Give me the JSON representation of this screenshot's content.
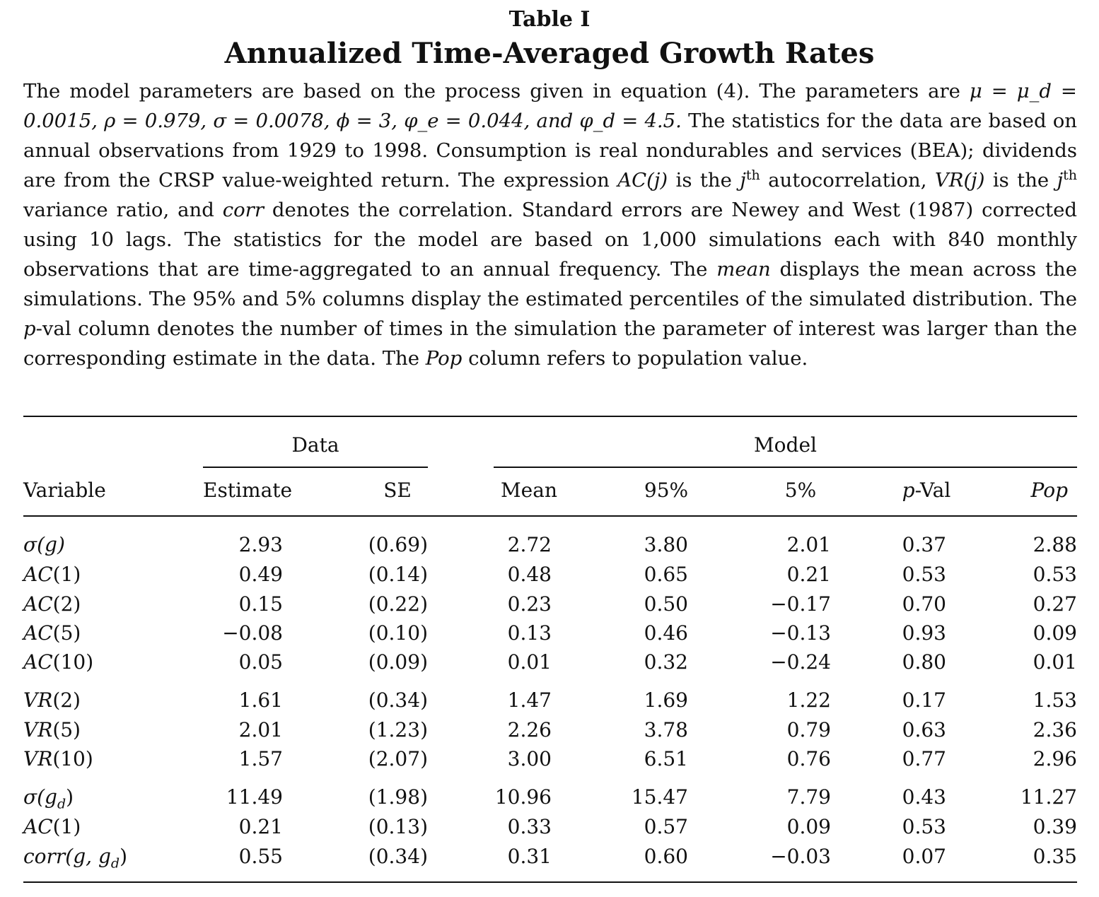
{
  "table_label": "Table I",
  "table_title": "Annualized Time-Averaged Growth Rates",
  "caption": {
    "s1": "The model parameters are based on the process given in equation (4). The parameters are",
    "params_line": "μ = μ_d = 0.0015, ρ = 0.979, σ = 0.0078, ϕ = 3, φ_e = 0.044, and φ_d = 4.5.",
    "s2": "The statistics for the data are based on annual observations from 1929 to 1998. Consumption is real nondurables and services (BEA); dividends are from the CRSP value-weighted return. The expression",
    "ac_term": "AC(j)",
    "s3": "is the",
    "j": "j",
    "th": "th",
    "s4": "autocorrelation,",
    "vr_term": "VR(j)",
    "s5": "is the",
    "s6": "variance ratio, and",
    "corr_term": "corr",
    "s7": "denotes the correlation. Standard errors are Newey and West (1987) corrected using 10 lags. The statistics for the model are based on 1,000 simulations each with 840 monthly observations that are time-aggregated to an annual frequency. The",
    "mean_term": "mean",
    "s8": "displays the mean across the simulations. The 95% and 5% columns display the estimated percentiles of the simulated distribution. The",
    "p_term": "p",
    "s9": "-val column denotes the number of times in the simulation the parameter of interest was larger than the corresponding estimate in the data. The",
    "pop_term": "Pop",
    "s10": "column refers to population value."
  },
  "table": {
    "group_data": "Data",
    "group_model": "Model",
    "headers": {
      "variable": "Variable",
      "estimate": "Estimate",
      "se": "SE",
      "mean": "Mean",
      "p95": "95%",
      "p5": "5%",
      "pval_p": "p",
      "pval_rest": "-Val",
      "pop": "Pop"
    },
    "rows": [
      {
        "var_main": "σ(g)",
        "var_sub": "",
        "var_after": "",
        "estimate": "2.93",
        "se": "(0.69)",
        "mean": "2.72",
        "p95": "3.80",
        "p5": "2.01",
        "pval": "0.37",
        "pop": "2.88"
      },
      {
        "var_main": "AC",
        "var_sub": "",
        "var_after": "(1)",
        "estimate": "0.49",
        "se": "(0.14)",
        "mean": "0.48",
        "p95": "0.65",
        "p5": "0.21",
        "pval": "0.53",
        "pop": "0.53"
      },
      {
        "var_main": "AC",
        "var_sub": "",
        "var_after": "(2)",
        "estimate": "0.15",
        "se": "(0.22)",
        "mean": "0.23",
        "p95": "0.50",
        "p5": "−0.17",
        "pval": "0.70",
        "pop": "0.27"
      },
      {
        "var_main": "AC",
        "var_sub": "",
        "var_after": "(5)",
        "estimate": "−0.08",
        "se": "(0.10)",
        "mean": "0.13",
        "p95": "0.46",
        "p5": "−0.13",
        "pval": "0.93",
        "pop": "0.09"
      },
      {
        "var_main": "AC",
        "var_sub": "",
        "var_after": "(10)",
        "estimate": "0.05",
        "se": "(0.09)",
        "mean": "0.01",
        "p95": "0.32",
        "p5": "−0.24",
        "pval": "0.80",
        "pop": "0.01"
      },
      {
        "var_main": "VR",
        "var_sub": "",
        "var_after": "(2)",
        "estimate": "1.61",
        "se": "(0.34)",
        "mean": "1.47",
        "p95": "1.69",
        "p5": "1.22",
        "pval": "0.17",
        "pop": "1.53"
      },
      {
        "var_main": "VR",
        "var_sub": "",
        "var_after": "(5)",
        "estimate": "2.01",
        "se": "(1.23)",
        "mean": "2.26",
        "p95": "3.78",
        "p5": "0.79",
        "pval": "0.63",
        "pop": "2.36"
      },
      {
        "var_main": "VR",
        "var_sub": "",
        "var_after": "(10)",
        "estimate": "1.57",
        "se": "(2.07)",
        "mean": "3.00",
        "p95": "6.51",
        "p5": "0.76",
        "pval": "0.77",
        "pop": "2.96"
      },
      {
        "var_main": "σ(g",
        "var_sub": "d",
        "var_after": ")",
        "estimate": "11.49",
        "se": "(1.98)",
        "mean": "10.96",
        "p95": "15.47",
        "p5": "7.79",
        "pval": "0.43",
        "pop": "11.27"
      },
      {
        "var_main": "AC",
        "var_sub": "",
        "var_after": "(1)",
        "estimate": "0.21",
        "se": "(0.13)",
        "mean": "0.33",
        "p95": "0.57",
        "p5": "0.09",
        "pval": "0.53",
        "pop": "0.39"
      },
      {
        "var_main": "corr(g, g",
        "var_sub": "d",
        "var_after": ")",
        "estimate": "0.55",
        "se": "(0.34)",
        "mean": "0.31",
        "p95": "0.60",
        "p5": "−0.03",
        "pval": "0.07",
        "pop": "0.35"
      }
    ]
  }
}
